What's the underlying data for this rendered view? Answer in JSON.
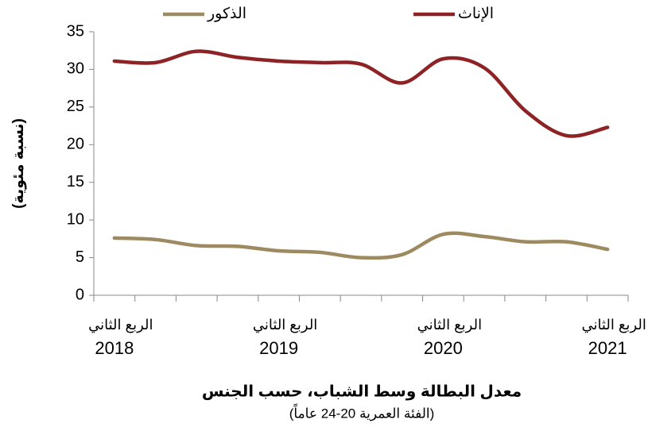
{
  "chart_data": {
    "type": "line",
    "title": "معدل البطالة وسط الشباب، حسب الجنس",
    "subtitle": "(الفئة العمرية 20-24 عاماً)",
    "y_label": "(نسبة مئوية)",
    "categories": [
      [
        "الربع الثاني",
        "2018"
      ],
      null,
      null,
      null,
      [
        "الربع الثاني",
        "2019"
      ],
      null,
      null,
      null,
      [
        "الربع الثاني",
        "2020"
      ],
      null,
      null,
      null,
      [
        "الربع الثاني",
        "2021"
      ]
    ],
    "series": [
      {
        "name": "الذكور",
        "color": "#9e8a60",
        "values": [
          7.6,
          7.4,
          6.6,
          6.5,
          5.9,
          5.7,
          5.0,
          5.4,
          8.1,
          7.8,
          7.1,
          7.1,
          6.1
        ]
      },
      {
        "name": "الإناث",
        "color": "#8e2326",
        "values": [
          31.1,
          30.9,
          32.4,
          31.6,
          31.1,
          30.9,
          30.7,
          28.2,
          31.4,
          30.2,
          24.5,
          21.2,
          22.3
        ]
      }
    ],
    "ylim": [
      0,
      35
    ],
    "yticks": [
      0,
      5,
      10,
      15,
      20,
      25,
      30,
      35
    ],
    "grid": false,
    "smooth": true,
    "legend": "top"
  }
}
